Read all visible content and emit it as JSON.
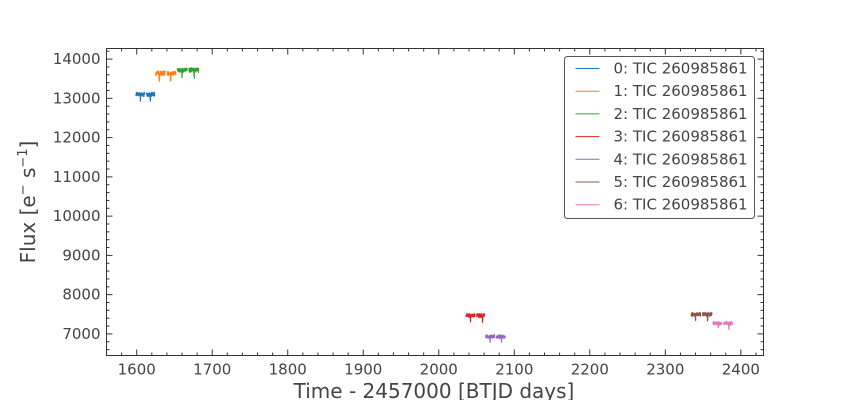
{
  "chart_data": {
    "type": "line",
    "xlabel": "Time - 2457000 [BTJD days]",
    "ylabel": "Flux [e",
    "ylabel_rest": "s",
    "ylabel_exp": "−1",
    "ylabel_close": "]",
    "xlim": [
      1560,
      2430
    ],
    "ylim": [
      6450,
      14270
    ],
    "x_ticks": [
      1600,
      1700,
      1800,
      1900,
      2000,
      2100,
      2200,
      2300,
      2400
    ],
    "y_ticks": [
      7000,
      8000,
      9000,
      10000,
      11000,
      12000,
      13000,
      14000
    ],
    "x_minor_step": 20,
    "y_minor_step": 200,
    "grid": false,
    "legend_position": "top-right",
    "series": [
      {
        "name": "0: TIC 260985861",
        "color": "#1f77b4",
        "x_range": [
          1599,
          1624
        ],
        "gap": [
          1611,
          1613
        ],
        "level": 13100,
        "noise": 45,
        "dips": [
          1605,
          1618
        ]
      },
      {
        "name": "1: TIC 260985861",
        "color": "#ff7f0e",
        "x_range": [
          1625,
          1652
        ],
        "gap": [
          1638,
          1640
        ],
        "level": 13640,
        "noise": 50,
        "dips": [
          1630,
          1645
        ]
      },
      {
        "name": "2: TIC 260985861",
        "color": "#2ca02c",
        "x_range": [
          1654,
          1682
        ],
        "gap": [
          1667,
          1669
        ],
        "level": 13720,
        "noise": 50,
        "dips": [
          1660,
          1676
        ]
      },
      {
        "name": "3: TIC 260985861",
        "color": "#d62728",
        "x_range": [
          2036,
          2061
        ],
        "gap": [
          2048,
          2050
        ],
        "level": 7470,
        "noise": 45,
        "dips": [
          2042,
          2058
        ]
      },
      {
        "name": "4: TIC 260985861",
        "color": "#9467bd",
        "x_range": [
          2062,
          2088
        ],
        "gap": [
          2074,
          2076
        ],
        "level": 6930,
        "noise": 40,
        "dips": [
          2068,
          2083
        ]
      },
      {
        "name": "5: TIC 260985861",
        "color": "#8c564b",
        "x_range": [
          2334,
          2362
        ],
        "gap": [
          2347,
          2349
        ],
        "level": 7500,
        "noise": 45,
        "dips": [
          2340,
          2356
        ]
      },
      {
        "name": "6: TIC 260985861",
        "color": "#e377c2",
        "x_range": [
          2363,
          2389
        ],
        "gap": [
          2375,
          2377
        ],
        "level": 7270,
        "noise": 40,
        "dips": [
          2370,
          2384
        ]
      }
    ]
  }
}
